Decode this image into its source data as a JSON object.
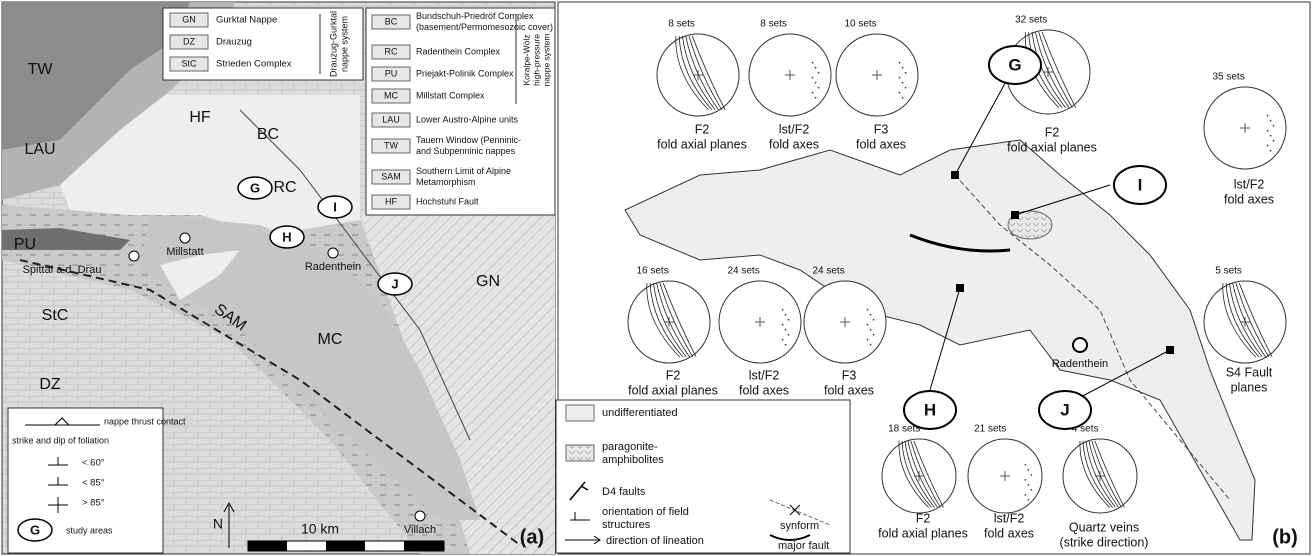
{
  "panel_a": {
    "label": "(a)",
    "map_labels": [
      "TW",
      "LAU",
      "HF",
      "BC",
      "RC",
      "PU",
      "StC",
      "SAM",
      "MC",
      "DZ",
      "GN"
    ],
    "places": [
      "Millstatt",
      "Radenthein",
      "Spittal a.d. Drau",
      "Villach"
    ],
    "study_areas": [
      "G",
      "I",
      "H",
      "J"
    ],
    "legend_drauzug": {
      "units": [
        {
          "code": "GN",
          "name": [
            "Gurktal Nappe"
          ]
        },
        {
          "code": "DZ",
          "name": [
            "Drauzug"
          ]
        },
        {
          "code": "StC",
          "name": [
            "Strieden Complex"
          ]
        }
      ],
      "group": [
        "Drauzug-Gurktal",
        "nappe system"
      ]
    },
    "legend_koralpe": {
      "units": [
        {
          "code": "BC",
          "name": [
            "Bundschuh-Priedröf Complex",
            "(basement/Permomesozoic cover)"
          ]
        },
        {
          "code": "RC",
          "name": [
            "Radenthein Complex"
          ]
        },
        {
          "code": "PU",
          "name": [
            "Priejakt-Polinik Complex"
          ]
        },
        {
          "code": "MC",
          "name": [
            "Millstatt Complex"
          ]
        }
      ],
      "group": [
        "Koralpe-Wölz",
        "high-pressure",
        "nappe system"
      ]
    },
    "legend_other": [
      {
        "code": "LAU",
        "name": [
          "Lower Austro-Alpine units"
        ]
      },
      {
        "code": "TW",
        "name": [
          "Tauern Window (Penninic-",
          "and Subpenninic nappes"
        ]
      },
      {
        "code": "SAM",
        "name": [
          "Southern Limit of Alpine",
          "Metamorphism"
        ]
      },
      {
        "code": "HF",
        "name": [
          "Hochstuhl Fault"
        ]
      }
    ],
    "symbols": {
      "thrust": "nappe thrust contact",
      "foliation": "strike and dip of foliation",
      "dips": [
        "< 60°",
        "< 85°",
        "> 85°"
      ],
      "study": {
        "code": "G",
        "name": "study areas"
      }
    },
    "north": "N",
    "scale": "10 km"
  },
  "panel_b": {
    "label": "(b)",
    "place": "Radenthein",
    "sites": [
      {
        "code": "G",
        "stereonets": [
          {
            "count": "8 sets",
            "caption": [
              "F2",
              "fold axial planes"
            ]
          },
          {
            "count": "8 sets",
            "caption": [
              "lst/F2",
              "fold axes"
            ]
          },
          {
            "count": "10 sets",
            "caption": [
              "F3",
              "fold axes"
            ]
          }
        ]
      },
      {
        "code": "I",
        "stereonets": [
          {
            "count": "32 sets",
            "caption": [
              "F2",
              "fold axial planes"
            ]
          },
          {
            "count": "35 sets",
            "caption": [
              "lst/F2",
              "fold axes"
            ]
          },
          {
            "count": "5 sets",
            "caption": [
              "S4 Fault",
              "planes"
            ]
          }
        ]
      },
      {
        "code": "H",
        "stereonets": [
          {
            "count": "16 sets",
            "caption": [
              "F2",
              "fold axial planes"
            ]
          },
          {
            "count": "24 sets",
            "caption": [
              "lst/F2",
              "fold axes"
            ]
          },
          {
            "count": "24 sets",
            "caption": [
              "F3",
              "fold axes"
            ]
          }
        ]
      },
      {
        "code": "J",
        "stereonets": [
          {
            "count": "18 sets",
            "caption": [
              "F2",
              "fold axial planes"
            ]
          },
          {
            "count": "21 sets",
            "caption": [
              "lst/F2",
              "fold axes"
            ]
          },
          {
            "count": "4 sets",
            "caption": [
              "Quartz veins",
              "(strike direction)"
            ]
          }
        ]
      }
    ],
    "legend": {
      "undifferentiated": [
        "undifferentiated"
      ],
      "paragonite": [
        "paragonite-",
        "amphibolites"
      ],
      "d4": [
        "D4 faults"
      ],
      "orientation": [
        "orientation of field",
        "structures"
      ],
      "lineation": [
        "direction of lineation"
      ],
      "synform": [
        "synform"
      ],
      "major_fault": [
        "major fault"
      ]
    }
  }
}
